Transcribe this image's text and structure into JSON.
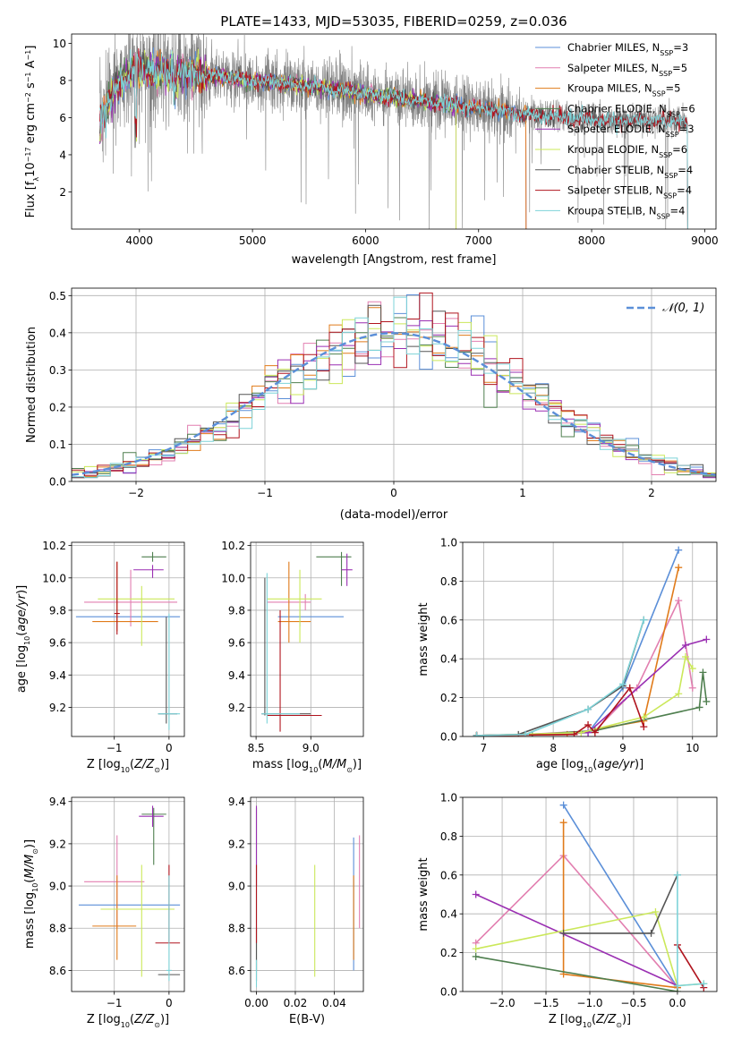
{
  "title": "PLATE=1433, MJD=53035, FIBERID=0259, z=0.036",
  "colors": {
    "chab_miles": "#5b8fd8",
    "salp_miles": "#e27fb0",
    "krou_miles": "#e07b1a",
    "chab_elodie": "#4f7f4f",
    "salp_elodie": "#9a2fb2",
    "krou_elodie": "#cbe85a",
    "chab_stelib": "#555555",
    "salp_stelib": "#b0141e",
    "krou_stelib": "#7dd3d8",
    "normal": "#5b8fd8"
  },
  "chart_data": [
    {
      "id": "spectrum",
      "type": "line",
      "xlabel": "wavelength [Angstrom, rest frame]",
      "ylabel": "Flux [f_λ 10^-17 erg cm^-2 s^-1 Å^-1]",
      "xlim": [
        3400,
        9100
      ],
      "ylim": [
        0,
        10.5
      ],
      "xticks": [
        "4000",
        "5000",
        "6000",
        "7000",
        "8000",
        "9000"
      ],
      "yticks": [
        "2",
        "4",
        "6",
        "8",
        "10"
      ],
      "grid": false,
      "legend": "top-right",
      "legend_entries": [
        {
          "name": "Chabrier MILES, N",
          "sub": "SSP",
          "tail": "=3",
          "color_key": "chab_miles"
        },
        {
          "name": "Salpeter MILES, N",
          "sub": "SSP",
          "tail": "=5",
          "color_key": "salp_miles"
        },
        {
          "name": "Kroupa MILES, N",
          "sub": "SSP",
          "tail": "=5",
          "color_key": "krou_miles"
        },
        {
          "name": "Chabrier ELODIE, N",
          "sub": "SSP",
          "tail": "=6",
          "color_key": "chab_elodie"
        },
        {
          "name": "Salpeter ELODIE, N",
          "sub": "SSP",
          "tail": "=3",
          "color_key": "salp_elodie"
        },
        {
          "name": "Kroupa ELODIE, N",
          "sub": "SSP",
          "tail": "=6",
          "color_key": "krou_elodie"
        },
        {
          "name": "Chabrier STELIB, N",
          "sub": "SSP",
          "tail": "=4",
          "color_key": "chab_stelib"
        },
        {
          "name": "Salpeter STELIB, N",
          "sub": "SSP",
          "tail": "=4",
          "color_key": "salp_stelib"
        },
        {
          "name": "Kroupa STELIB, N",
          "sub": "SSP",
          "tail": "=4",
          "color_key": "krou_stelib"
        }
      ],
      "continuum": {
        "x": [
          3650,
          3700,
          3800,
          3900,
          4000,
          4100,
          4300,
          4600,
          5000,
          5500,
          6000,
          6500,
          7000,
          7500,
          8000,
          8500,
          8850
        ],
        "y": [
          5.9,
          6.4,
          7.8,
          8.3,
          8.7,
          8.5,
          8.6,
          8.3,
          8.0,
          7.7,
          7.3,
          6.9,
          6.5,
          6.15,
          5.9,
          5.85,
          5.85
        ]
      },
      "data_range": [
        3650,
        8850
      ],
      "model_ranges": {
        "miles": [
          3650,
          7420
        ],
        "elodie": [
          3650,
          6800
        ],
        "stelib": [
          3650,
          8850
        ]
      }
    },
    {
      "id": "residuals",
      "type": "histogram",
      "xlabel": "(data-model)/error",
      "ylabel": "Normed distribution",
      "xlim": [
        -2.5,
        2.5
      ],
      "ylim": [
        0,
        0.52
      ],
      "xticks": [
        "−2",
        "−1",
        "0",
        "1",
        "2"
      ],
      "yticks": [
        "0.0",
        "0.1",
        "0.2",
        "0.3",
        "0.4",
        "0.5"
      ],
      "grid": true,
      "legend": "top-right",
      "legend_label": "𝒩(0, 1)",
      "bin_width": 0.1
    },
    {
      "id": "age-vs-metallicity",
      "type": "scatter",
      "xlabel": "Z [log₁₀(Z/Z☉)]",
      "ylabel": "age  [log₁₀(age/yr)]",
      "xlim": [
        -1.78,
        0.28
      ],
      "ylim": [
        9.02,
        10.22
      ],
      "xticks": [
        "−1",
        "0"
      ],
      "yticks": [
        "9.2",
        "9.4",
        "9.6",
        "9.8",
        "10.0",
        "10.2"
      ],
      "grid": true
    },
    {
      "id": "age-vs-mass",
      "type": "scatter",
      "xlabel": "mass [log₁₀(M/M☉)]",
      "ylabel": "",
      "xlim": [
        8.45,
        9.48
      ],
      "ylim": [
        9.02,
        10.22
      ],
      "xticks": [
        "8.5",
        "9.0"
      ],
      "yticks": [
        "9.2",
        "9.4",
        "9.6",
        "9.8",
        "10.0",
        "10.2"
      ],
      "grid": true
    },
    {
      "id": "weight-vs-age",
      "type": "line",
      "xlabel": "age  [log₁₀(age/yr)]",
      "ylabel": "mass weight",
      "xlim": [
        6.7,
        10.35
      ],
      "ylim": [
        0,
        1
      ],
      "xticks": [
        "7",
        "8",
        "9",
        "10"
      ],
      "yticks": [
        "0.0",
        "0.2",
        "0.4",
        "0.6",
        "0.8",
        "1.0"
      ],
      "grid": true,
      "series": [
        {
          "key": "chab_miles",
          "x": [
            6.9,
            7.6,
            8.5,
            9.0,
            9.8
          ],
          "y": [
            0.005,
            0.01,
            0.02,
            0.25,
            0.96
          ]
        },
        {
          "key": "salp_miles",
          "x": [
            6.9,
            7.6,
            8.6,
            9.2,
            9.8,
            10.0
          ],
          "y": [
            0.005,
            0.01,
            0.03,
            0.25,
            0.7,
            0.25
          ]
        },
        {
          "key": "krou_miles",
          "x": [
            6.9,
            8.2,
            9.3,
            9.8
          ],
          "y": [
            0.005,
            0.01,
            0.08,
            0.87
          ]
        },
        {
          "key": "chab_elodie",
          "x": [
            6.9,
            7.7,
            8.6,
            10.1,
            10.15,
            10.2
          ],
          "y": [
            0.005,
            0.01,
            0.03,
            0.15,
            0.33,
            0.18
          ]
        },
        {
          "key": "salp_elodie",
          "x": [
            6.9,
            8.5,
            9.9,
            10.2
          ],
          "y": [
            0.005,
            0.02,
            0.47,
            0.5
          ]
        },
        {
          "key": "krou_elodie",
          "x": [
            6.9,
            8.4,
            9.3,
            9.8,
            9.9,
            10.0
          ],
          "y": [
            0.005,
            0.02,
            0.1,
            0.22,
            0.41,
            0.35
          ]
        },
        {
          "key": "chab_stelib",
          "x": [
            6.9,
            7.5,
            8.5,
            9.0,
            9.3
          ],
          "y": [
            0.005,
            0.01,
            0.14,
            0.26,
            0.6
          ]
        },
        {
          "key": "salp_stelib",
          "x": [
            6.9,
            8.3,
            8.5,
            8.6,
            9.1,
            9.3
          ],
          "y": [
            0.005,
            0.01,
            0.06,
            0.02,
            0.25,
            0.05
          ]
        },
        {
          "key": "krou_stelib",
          "x": [
            6.9,
            7.6,
            8.5,
            9.0,
            9.3
          ],
          "y": [
            0.005,
            0.01,
            0.14,
            0.27,
            0.6
          ]
        }
      ]
    },
    {
      "id": "mass-vs-metallicity",
      "type": "scatter",
      "xlabel": "Z [log₁₀(Z/Z☉)]",
      "ylabel": "mass [log₁₀(M/M☉)]",
      "xlim": [
        -1.78,
        0.28
      ],
      "ylim": [
        8.5,
        9.42
      ],
      "xticks": [
        "−1",
        "0"
      ],
      "yticks": [
        "8.6",
        "8.8",
        "9.0",
        "9.2",
        "9.4"
      ],
      "grid": true
    },
    {
      "id": "mass-vs-ebv",
      "type": "scatter",
      "xlabel": "E(B-V)",
      "ylabel": "",
      "xlim": [
        -0.003,
        0.055
      ],
      "ylim": [
        8.5,
        9.42
      ],
      "xticks": [
        "0.00",
        "0.02",
        "0.04"
      ],
      "yticks": [
        "8.6",
        "8.8",
        "9.0",
        "9.2",
        "9.4"
      ],
      "grid": true
    },
    {
      "id": "weight-vs-metallicity",
      "type": "line",
      "xlabel": "Z [log₁₀(Z/Z☉)]",
      "ylabel": "mass weight",
      "xlim": [
        -2.45,
        0.45
      ],
      "ylim": [
        0,
        1
      ],
      "xticks": [
        "−2.0",
        "−1.5",
        "−1.0",
        "−0.5",
        "0.0"
      ],
      "yticks": [
        "0.0",
        "0.2",
        "0.4",
        "0.6",
        "0.8",
        "1.0"
      ],
      "grid": true,
      "series": [
        {
          "key": "chab_miles",
          "x": [
            -1.3,
            0.0
          ],
          "y": [
            0.96,
            0.02
          ]
        },
        {
          "key": "salp_miles",
          "x": [
            -2.3,
            -1.3,
            0.0
          ],
          "y": [
            0.25,
            0.7,
            0.02
          ]
        },
        {
          "key": "krou_miles",
          "x": [
            -1.3,
            -1.3,
            0.0
          ],
          "y": [
            0.87,
            0.09,
            0.02
          ]
        },
        {
          "key": "chab_elodie",
          "x": [
            -2.3,
            0.0
          ],
          "y": [
            0.18,
            0.0
          ]
        },
        {
          "key": "salp_elodie",
          "x": [
            -2.3,
            0.0
          ],
          "y": [
            0.5,
            0.03
          ]
        },
        {
          "key": "krou_elodie",
          "x": [
            -2.3,
            -0.25,
            0.0,
            0.3
          ],
          "y": [
            0.22,
            0.41,
            0.03,
            0.04
          ]
        },
        {
          "key": "chab_stelib",
          "x": [
            -1.3,
            -0.3,
            0.0
          ],
          "y": [
            0.3,
            0.3,
            0.6
          ]
        },
        {
          "key": "salp_stelib",
          "x": [
            0.0,
            0.3
          ],
          "y": [
            0.24,
            0.02
          ]
        },
        {
          "key": "krou_stelib",
          "x": [
            0.0,
            0.0,
            0.3
          ],
          "y": [
            0.6,
            0.03,
            0.04
          ]
        }
      ]
    }
  ],
  "errorbars": {
    "age-vs-metallicity": [
      {
        "key": "chab_miles",
        "x": -0.7,
        "xlo": -1.7,
        "xhi": 0.2,
        "y": 9.76,
        "ylo": 9.76,
        "yhi": 9.76
      },
      {
        "key": "salp_miles",
        "x": -0.7,
        "xlo": -1.55,
        "xhi": 0.15,
        "y": 9.85,
        "ylo": 9.7,
        "yhi": 10.05
      },
      {
        "key": "krou_miles",
        "x": -0.95,
        "xlo": -1.4,
        "xhi": -0.2,
        "y": 9.73,
        "ylo": 9.67,
        "yhi": 10.1
      },
      {
        "key": "chab_elodie",
        "x": -0.3,
        "xlo": -0.5,
        "xhi": -0.05,
        "y": 10.13,
        "ylo": 10.1,
        "yhi": 10.16
      },
      {
        "key": "salp_elodie",
        "x": -0.3,
        "xlo": -0.65,
        "xhi": -0.1,
        "y": 10.05,
        "ylo": 10.0,
        "yhi": 10.08
      },
      {
        "key": "krou_elodie",
        "x": -0.5,
        "xlo": -1.3,
        "xhi": 0.1,
        "y": 9.87,
        "ylo": 9.58,
        "yhi": 9.95
      },
      {
        "key": "chab_stelib",
        "x": -0.05,
        "xlo": -0.2,
        "xhi": 0.15,
        "y": 9.16,
        "ylo": 9.1,
        "yhi": 9.76
      },
      {
        "key": "salp_stelib",
        "x": -0.95,
        "xlo": -1.0,
        "xhi": -0.9,
        "y": 9.78,
        "ylo": 9.65,
        "yhi": 10.1
      },
      {
        "key": "krou_stelib",
        "x": 0.0,
        "xlo": -0.2,
        "xhi": 0.2,
        "y": 9.16,
        "ylo": 9.06,
        "yhi": 9.78
      }
    ],
    "age-vs-mass": [
      {
        "key": "chab_miles",
        "x": 8.9,
        "xlo": 8.7,
        "xhi": 9.3,
        "y": 9.76,
        "ylo": 9.7,
        "yhi": 9.84
      },
      {
        "key": "salp_miles",
        "x": 8.95,
        "xlo": 8.6,
        "xhi": 9.0,
        "y": 9.85,
        "ylo": 9.8,
        "yhi": 9.9
      },
      {
        "key": "krou_miles",
        "x": 8.8,
        "xlo": 8.7,
        "xhi": 9.0,
        "y": 9.73,
        "ylo": 9.6,
        "yhi": 10.1
      },
      {
        "key": "chab_elodie",
        "x": 9.28,
        "xlo": 9.05,
        "xhi": 9.37,
        "y": 10.13,
        "ylo": 9.95,
        "yhi": 10.16
      },
      {
        "key": "salp_elodie",
        "x": 9.33,
        "xlo": 9.28,
        "xhi": 9.38,
        "y": 10.05,
        "ylo": 9.95,
        "yhi": 10.15
      },
      {
        "key": "krou_elodie",
        "x": 8.9,
        "xlo": 8.6,
        "xhi": 9.1,
        "y": 9.87,
        "ylo": 9.6,
        "yhi": 10.05
      },
      {
        "key": "chab_stelib",
        "x": 8.58,
        "xlo": 8.55,
        "xhi": 9.0,
        "y": 9.16,
        "ylo": 9.15,
        "yhi": 10.0
      },
      {
        "key": "salp_stelib",
        "x": 8.72,
        "xlo": 8.6,
        "xhi": 9.1,
        "y": 9.15,
        "ylo": 9.05,
        "yhi": 9.8
      },
      {
        "key": "krou_stelib",
        "x": 8.6,
        "xlo": 8.55,
        "xhi": 8.9,
        "y": 9.16,
        "ylo": 9.1,
        "yhi": 10.03
      }
    ],
    "mass-vs-metallicity": [
      {
        "key": "chab_miles",
        "x": -0.7,
        "xlo": -1.65,
        "xhi": 0.2,
        "y": 8.91,
        "ylo": 8.91,
        "yhi": 8.91
      },
      {
        "key": "salp_miles",
        "x": -0.95,
        "xlo": -1.55,
        "xhi": -0.45,
        "y": 9.02,
        "ylo": 8.8,
        "yhi": 9.24
      },
      {
        "key": "krou_miles",
        "x": -0.95,
        "xlo": -1.4,
        "xhi": -0.6,
        "y": 8.81,
        "ylo": 8.65,
        "yhi": 9.05
      },
      {
        "key": "chab_elodie",
        "x": -0.28,
        "xlo": -0.5,
        "xhi": -0.05,
        "y": 9.34,
        "ylo": 9.1,
        "yhi": 9.37
      },
      {
        "key": "salp_elodie",
        "x": -0.3,
        "xlo": -0.55,
        "xhi": -0.1,
        "y": 9.33,
        "ylo": 9.28,
        "yhi": 9.38
      },
      {
        "key": "krou_elodie",
        "x": -0.5,
        "xlo": -1.25,
        "xhi": 0.1,
        "y": 8.89,
        "ylo": 8.57,
        "yhi": 9.1
      },
      {
        "key": "chab_stelib",
        "x": 0.0,
        "xlo": -0.2,
        "xhi": 0.2,
        "y": 8.58,
        "ylo": 8.58,
        "yhi": 8.58
      },
      {
        "key": "salp_stelib",
        "x": 0.0,
        "xlo": -0.25,
        "xhi": 0.2,
        "y": 8.73,
        "ylo": 8.73,
        "yhi": 9.1
      },
      {
        "key": "krou_stelib",
        "x": 0.0,
        "xlo": -0.05,
        "xhi": 0.05,
        "y": 8.6,
        "ylo": 8.55,
        "yhi": 9.05
      }
    ],
    "mass-vs-ebv": [
      {
        "key": "chab_miles",
        "x": 0.05,
        "xlo": 0.05,
        "xhi": 0.05,
        "y": 8.91,
        "ylo": 8.6,
        "yhi": 9.23
      },
      {
        "key": "salp_miles",
        "x": 0.053,
        "xlo": 0.053,
        "xhi": 0.053,
        "y": 9.02,
        "ylo": 8.8,
        "yhi": 9.24
      },
      {
        "key": "krou_miles",
        "x": 0.05,
        "xlo": 0.05,
        "xhi": 0.05,
        "y": 8.81,
        "ylo": 8.65,
        "yhi": 9.05
      },
      {
        "key": "chab_elodie",
        "x": 0.0,
        "xlo": 0.0,
        "xhi": 0.0,
        "y": 9.34,
        "ylo": 8.6,
        "yhi": 9.37
      },
      {
        "key": "salp_elodie",
        "x": 0.0,
        "xlo": 0.0,
        "xhi": 0.0,
        "y": 9.33,
        "ylo": 9.0,
        "yhi": 9.38
      },
      {
        "key": "krou_elodie",
        "x": 0.03,
        "xlo": 0.03,
        "xhi": 0.03,
        "y": 8.89,
        "ylo": 8.57,
        "yhi": 9.1
      },
      {
        "key": "chab_stelib",
        "x": 0.0,
        "xlo": 0.0,
        "xhi": 0.0,
        "y": 8.58,
        "ylo": 8.55,
        "yhi": 8.8
      },
      {
        "key": "salp_stelib",
        "x": 0.0,
        "xlo": 0.0,
        "xhi": 0.0,
        "y": 8.73,
        "ylo": 8.73,
        "yhi": 9.1
      },
      {
        "key": "krou_stelib",
        "x": 0.0,
        "xlo": 0.0,
        "xhi": 0.0,
        "y": 8.6,
        "ylo": 8.52,
        "yhi": 8.65
      }
    ]
  }
}
